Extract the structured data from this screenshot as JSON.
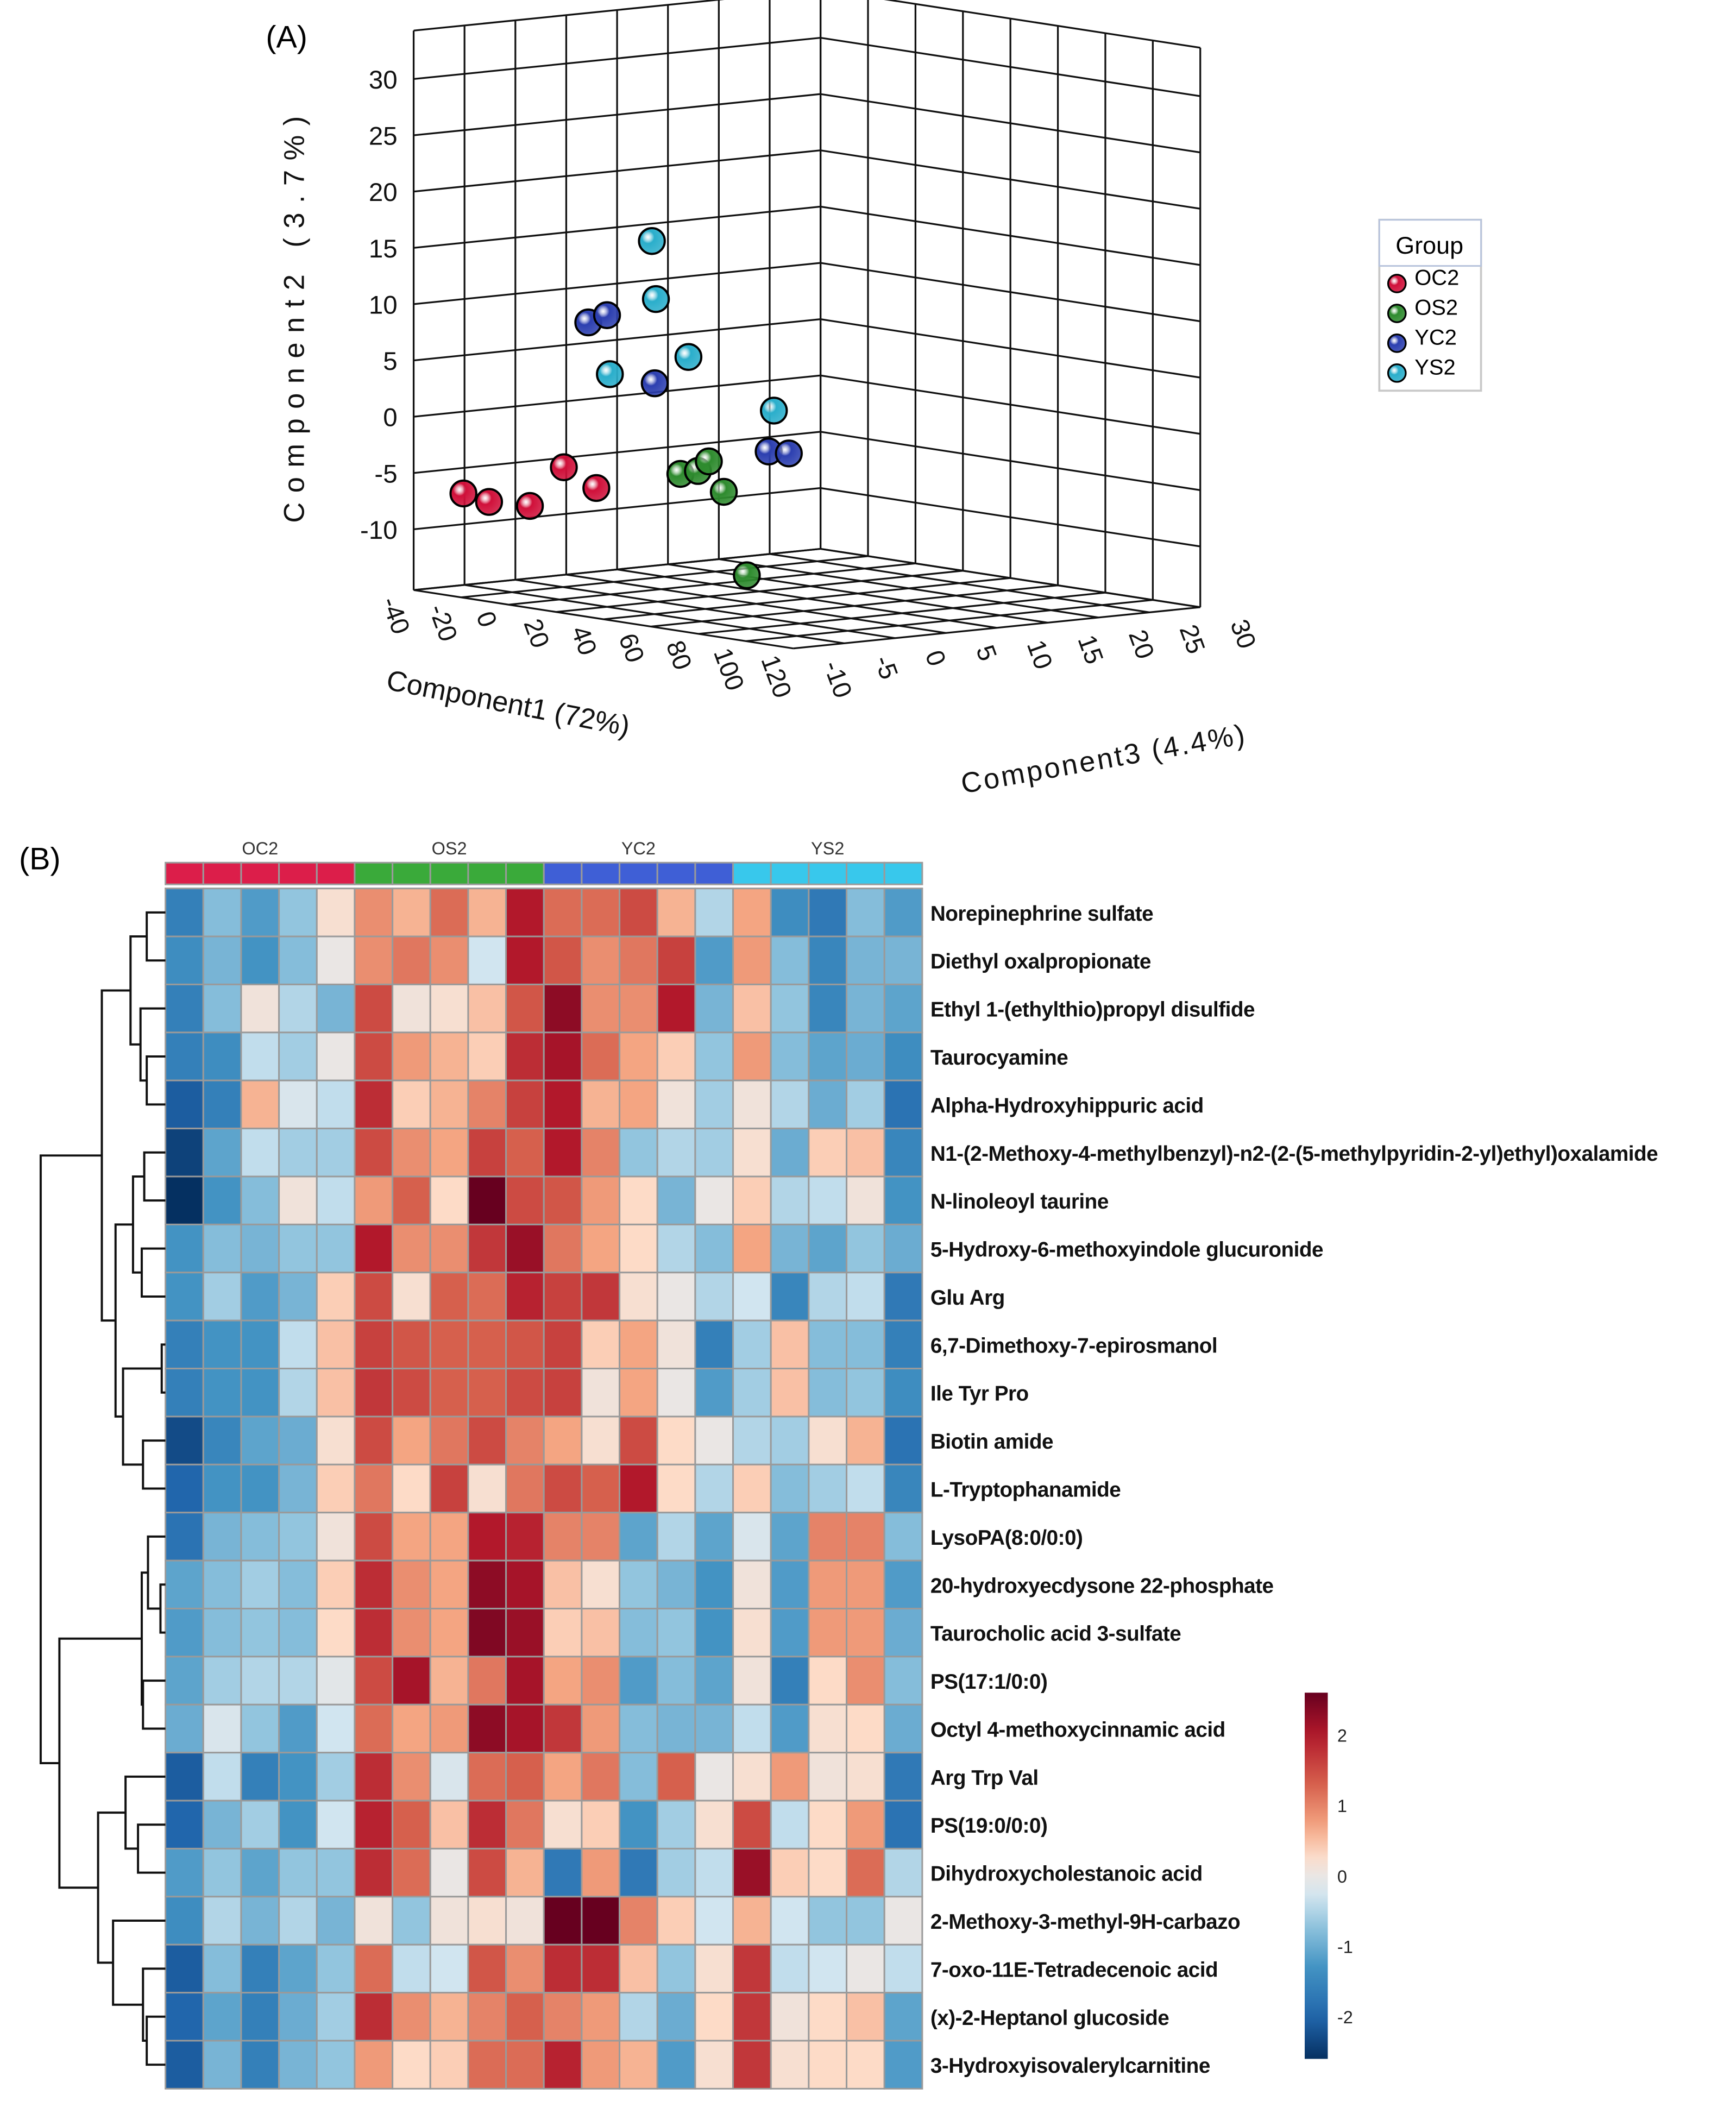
{
  "figure": {
    "panel_a_label": "(A)",
    "panel_b_label": "(B)"
  },
  "chart_data": [
    {
      "type": "scatter",
      "subtype": "3d-scatter",
      "title": "",
      "xlabel": "Component1 (72%)",
      "ylabel": "Component2 (3.7%)",
      "zlabel": "Component3 (4.4%)",
      "xlim": [
        -40,
        120
      ],
      "ylim": [
        -15,
        34
      ],
      "zlim": [
        -10,
        30
      ],
      "xticks": [
        "-40",
        "-20",
        "0",
        "20",
        "40",
        "60",
        "80",
        "100",
        "120"
      ],
      "yticks": [
        "-10",
        "-5",
        "0",
        "5",
        "10",
        "15",
        "20",
        "25",
        "30"
      ],
      "zticks": [
        "-10",
        "-5",
        "0",
        "5",
        "10",
        "15",
        "20",
        "25",
        "30"
      ],
      "grid": true,
      "legend": {
        "title": "Group",
        "position": "right"
      },
      "series": [
        {
          "name": "OC2",
          "color": "#d0103a",
          "points": [
            [
              -27.6,
              -6.6,
              -8
            ],
            [
              -16.8,
              -7.0,
              -8
            ],
            [
              0.4,
              -6.8,
              -8
            ],
            [
              14.7,
              -2.9,
              -8
            ],
            [
              28.4,
              -4.3,
              -8
            ]
          ]
        },
        {
          "name": "OS2",
          "color": "#2e8b2e",
          "points": [
            [
              63.8,
              -1.9,
              -8
            ],
            [
              71.2,
              -1.4,
              -8
            ],
            [
              75.8,
              -0.4,
              -8
            ],
            [
              82.1,
              -2.9,
              -8
            ],
            [
              91.8,
              -10.0,
              -8
            ]
          ]
        },
        {
          "name": "YC2",
          "color": "#2c3fb0",
          "points": [
            [
              25.0,
              10.3,
              -8
            ],
            [
              32.9,
              11.2,
              -8
            ],
            [
              53.0,
              5.8,
              -8
            ],
            [
              101.0,
              1.3,
              -8
            ],
            [
              109.5,
              1.4,
              -8
            ]
          ]
        },
        {
          "name": "YS2",
          "color": "#2aaecb",
          "points": [
            [
              51.8,
              18.4,
              -8
            ],
            [
              53.5,
              13.3,
              -8
            ],
            [
              34.1,
              6.0,
              -8
            ],
            [
              67.2,
              8.6,
              -8
            ],
            [
              103.2,
              5.0,
              -8
            ]
          ]
        }
      ]
    },
    {
      "type": "heatmap",
      "column_groups": [
        {
          "name": "OC2",
          "color": "#dc1e4a",
          "count": 5
        },
        {
          "name": "OS2",
          "color": "#3aaa3a",
          "count": 5
        },
        {
          "name": "YC2",
          "color": "#3f5fd6",
          "count": 5
        },
        {
          "name": "YS2",
          "color": "#38c8ec",
          "count": 5
        }
      ],
      "rows": [
        "Norepinephrine sulfate",
        "Diethyl oxalpropionate",
        "Ethyl 1-(ethylthio)propyl disulfide",
        "Taurocyamine",
        "Alpha-Hydroxyhippuric acid",
        "N1-(2-Methoxy-4-methylbenzyl)-n2-(2-(5-methylpyridin-2-yl)ethyl)oxalamide",
        "N-linoleoyl taurine",
        "5-Hydroxy-6-methoxyindole glucuronide",
        "Glu Arg",
        "6,7-Dimethoxy-7-epirosmanol",
        "Ile Tyr Pro",
        "Biotin amide",
        "L-Tryptophanamide",
        "LysoPA(8:0/0:0)",
        "20-hydroxyecdysone 22-phosphate",
        "Taurocholic acid 3-sulfate",
        "PS(17:1/0:0)",
        "Octyl 4-methoxycinnamic acid",
        "Arg Trp Val",
        "PS(19:0/0:0)",
        "Dihydroxycholestanoic acid",
        "2-Methoxy-3-methyl-9H-carbazo",
        "7-oxo-11E-Tetradecenoic acid",
        "(x)-2-Heptanol glucoside",
        "3-Hydroxyisovalerylcarnitine"
      ],
      "values": [
        [
          -1.6,
          -0.8,
          -1.2,
          -0.7,
          0.2,
          0.9,
          0.6,
          1.2,
          0.6,
          2.0,
          1.2,
          1.2,
          1.5,
          0.6,
          -0.5,
          0.7,
          -1.4,
          -1.7,
          -0.8,
          -1.2
        ],
        [
          -1.4,
          -0.9,
          -1.3,
          -0.8,
          0,
          0.9,
          1.1,
          0.9,
          -0.3,
          2.0,
          1.4,
          0.9,
          1.1,
          1.6,
          -1.2,
          0.8,
          -0.8,
          -1.5,
          -0.9,
          -0.9
        ],
        [
          -1.6,
          -0.8,
          0.1,
          -0.5,
          -0.9,
          1.5,
          0.1,
          0.2,
          0.5,
          1.4,
          2.3,
          0.9,
          0.9,
          2.0,
          -0.9,
          0.5,
          -0.7,
          -1.5,
          -0.9,
          -1.1
        ],
        [
          -1.6,
          -1.4,
          -0.4,
          -0.6,
          0,
          1.5,
          0.8,
          0.6,
          0.4,
          1.8,
          2.1,
          1.2,
          0.7,
          0.4,
          -0.7,
          0.8,
          -0.8,
          -1.1,
          -1.0,
          -1.4
        ],
        [
          -2.1,
          -1.6,
          0.6,
          -0.2,
          -0.4,
          1.8,
          0.4,
          0.6,
          1.0,
          1.6,
          2.0,
          0.6,
          0.7,
          0.1,
          -0.6,
          0.1,
          -0.5,
          -1.0,
          -0.6,
          -1.8
        ],
        [
          -2.4,
          -1.1,
          -0.4,
          -0.6,
          -0.6,
          1.5,
          0.9,
          0.7,
          1.6,
          1.3,
          2.0,
          1.0,
          -0.7,
          -0.5,
          -0.6,
          0.2,
          -1.0,
          0.4,
          0.5,
          -1.5
        ],
        [
          -2.6,
          -1.3,
          -0.8,
          0.1,
          -0.4,
          0.8,
          1.3,
          0.3,
          2.6,
          1.5,
          1.4,
          0.8,
          0.3,
          -0.9,
          0,
          0.4,
          -0.5,
          -0.4,
          0.1,
          -1.3
        ],
        [
          -1.3,
          -0.8,
          -0.9,
          -0.7,
          -0.7,
          2.0,
          0.9,
          0.9,
          1.7,
          2.2,
          1.1,
          0.7,
          0.3,
          -0.5,
          -0.8,
          0.7,
          -0.9,
          -1.1,
          -0.7,
          -1.0
        ],
        [
          -1.3,
          -0.6,
          -1.2,
          -0.9,
          0.4,
          1.5,
          0.2,
          1.3,
          1.2,
          1.9,
          1.6,
          1.7,
          0.2,
          0,
          -0.5,
          -0.3,
          -1.5,
          -0.5,
          -0.4,
          -1.7
        ],
        [
          -1.6,
          -1.3,
          -1.3,
          -0.4,
          0.5,
          1.6,
          1.4,
          1.3,
          1.3,
          1.4,
          1.6,
          0.4,
          0.7,
          0.1,
          -1.6,
          -0.6,
          0.5,
          -0.8,
          -0.8,
          -1.6
        ],
        [
          -1.6,
          -1.3,
          -1.3,
          -0.5,
          0.5,
          1.7,
          1.5,
          1.3,
          1.3,
          1.5,
          1.6,
          0.1,
          0.7,
          0,
          -1.2,
          -0.6,
          0.5,
          -0.8,
          -0.7,
          -1.4
        ],
        [
          -2.3,
          -1.5,
          -1.1,
          -1.0,
          0.2,
          1.5,
          0.7,
          1.1,
          1.5,
          1.0,
          0.7,
          0.2,
          1.5,
          0.3,
          0,
          -0.5,
          -0.6,
          0.2,
          0.6,
          -1.8
        ],
        [
          -2.0,
          -1.3,
          -1.3,
          -0.9,
          0.4,
          1.1,
          0.3,
          1.6,
          0.2,
          1.1,
          1.5,
          1.3,
          2.0,
          0.3,
          -0.5,
          0.4,
          -0.8,
          -0.6,
          -0.4,
          -1.5
        ],
        [
          -1.8,
          -0.9,
          -0.8,
          -0.7,
          0.1,
          1.5,
          0.7,
          0.7,
          2.0,
          1.9,
          1.0,
          1.0,
          -1.1,
          -0.5,
          -1.1,
          -0.2,
          -1.1,
          1.0,
          1.0,
          -0.8
        ],
        [
          -1.1,
          -0.8,
          -0.6,
          -0.8,
          0.4,
          1.8,
          0.9,
          0.7,
          2.3,
          2.1,
          0.5,
          0.2,
          -0.7,
          -0.9,
          -1.3,
          0.1,
          -1.2,
          0.8,
          0.8,
          -1.2
        ],
        [
          -1.2,
          -0.8,
          -0.7,
          -0.8,
          0.3,
          1.8,
          0.9,
          0.7,
          2.4,
          2.2,
          0.4,
          0.5,
          -0.8,
          -0.7,
          -1.3,
          0.2,
          -1.2,
          0.8,
          0.8,
          -1.0
        ],
        [
          -1.1,
          -0.6,
          -0.5,
          -0.5,
          -0.1,
          1.5,
          2.1,
          0.6,
          1.1,
          2.1,
          0.7,
          0.9,
          -1.2,
          -0.8,
          -1.1,
          0.1,
          -1.6,
          0.3,
          0.9,
          -0.8
        ],
        [
          -1.0,
          -0.2,
          -0.7,
          -1.2,
          -0.3,
          1.2,
          0.7,
          0.8,
          2.3,
          2.1,
          1.7,
          0.8,
          -0.8,
          -0.9,
          -0.9,
          -0.4,
          -1.2,
          0.2,
          0.3,
          -1.0
        ],
        [
          -2.1,
          -0.4,
          -1.6,
          -1.3,
          -0.6,
          1.8,
          0.9,
          -0.2,
          1.2,
          1.3,
          0.7,
          1.1,
          -0.8,
          1.3,
          0,
          0.2,
          0.8,
          0.1,
          0.2,
          -1.7
        ],
        [
          -2.0,
          -0.9,
          -0.6,
          -1.3,
          -0.3,
          1.9,
          1.3,
          0.5,
          1.8,
          1.1,
          0.2,
          0.4,
          -1.3,
          -0.6,
          0.2,
          1.5,
          -0.4,
          0.3,
          0.8,
          -1.8
        ],
        [
          -1.2,
          -0.7,
          -1.1,
          -0.7,
          -0.7,
          1.8,
          1.2,
          0,
          1.5,
          0.6,
          -1.7,
          0.8,
          -1.7,
          -0.6,
          -0.4,
          2.2,
          0.4,
          0.3,
          1.2,
          -0.5
        ],
        [
          -1.4,
          -0.5,
          -0.9,
          -0.5,
          -0.9,
          0.1,
          -0.7,
          0.1,
          0.2,
          0.1,
          2.8,
          3.0,
          1.0,
          0.4,
          -0.3,
          0.6,
          -0.3,
          -0.7,
          -0.7,
          0
        ],
        [
          -2.1,
          -0.8,
          -1.6,
          -1.1,
          -0.7,
          1.2,
          -0.4,
          -0.3,
          1.4,
          0.9,
          1.8,
          1.8,
          0.5,
          -0.7,
          0.2,
          1.7,
          -0.4,
          -0.3,
          0,
          -0.4
        ],
        [
          -2.0,
          -1.1,
          -1.6,
          -1.0,
          -0.6,
          1.8,
          0.9,
          0.6,
          1.0,
          1.3,
          1.0,
          0.8,
          -0.5,
          -1.0,
          0.3,
          1.7,
          0.1,
          0.3,
          0.5,
          -1.1
        ],
        [
          -2.1,
          -0.9,
          -1.6,
          -0.9,
          -0.7,
          0.8,
          0.3,
          0.4,
          1.2,
          1.2,
          1.9,
          0.8,
          0.6,
          -1.2,
          0.2,
          1.7,
          0.2,
          0.3,
          0.3,
          -1.2
        ]
      ],
      "colorbar": {
        "ticks": [
          "2",
          "1",
          "0",
          "-1",
          "-2"
        ],
        "tick_values": [
          2,
          1,
          0,
          -1,
          -2
        ],
        "range": [
          -2.6,
          2.6
        ]
      },
      "dendrogram": [
        [
          "r0",
          "r1",
          0.15
        ],
        [
          "r3",
          "r4",
          0.15
        ],
        [
          "r2",
          "n1",
          0.2
        ],
        [
          "n0",
          "n2",
          0.28
        ],
        [
          "r5",
          "r6",
          0.17
        ],
        [
          "r7",
          "r8",
          0.19
        ],
        [
          "n4",
          "n5",
          0.26
        ],
        [
          "r9",
          "r10",
          0.03
        ],
        [
          "r11",
          "r12",
          0.18
        ],
        [
          "n7",
          "n8",
          0.34
        ],
        [
          "n6",
          "n9",
          0.4
        ],
        [
          "n3",
          "n10",
          0.51
        ],
        [
          "r14",
          "r15",
          0.04
        ],
        [
          "r13",
          "n12",
          0.14
        ],
        [
          "r16",
          "r17",
          0.18
        ],
        [
          "n13",
          "n14",
          0.19
        ],
        [
          "r19",
          "r20",
          0.22
        ],
        [
          "r18",
          "n16",
          0.32
        ],
        [
          "r23",
          "r24",
          0.15
        ],
        [
          "r22",
          "n18",
          0.18
        ],
        [
          "r21",
          "n19",
          0.42
        ],
        [
          "n17",
          "n20",
          0.54
        ],
        [
          "n15",
          "n21",
          0.85
        ],
        [
          "n11",
          "n22",
          1.0
        ]
      ]
    }
  ]
}
